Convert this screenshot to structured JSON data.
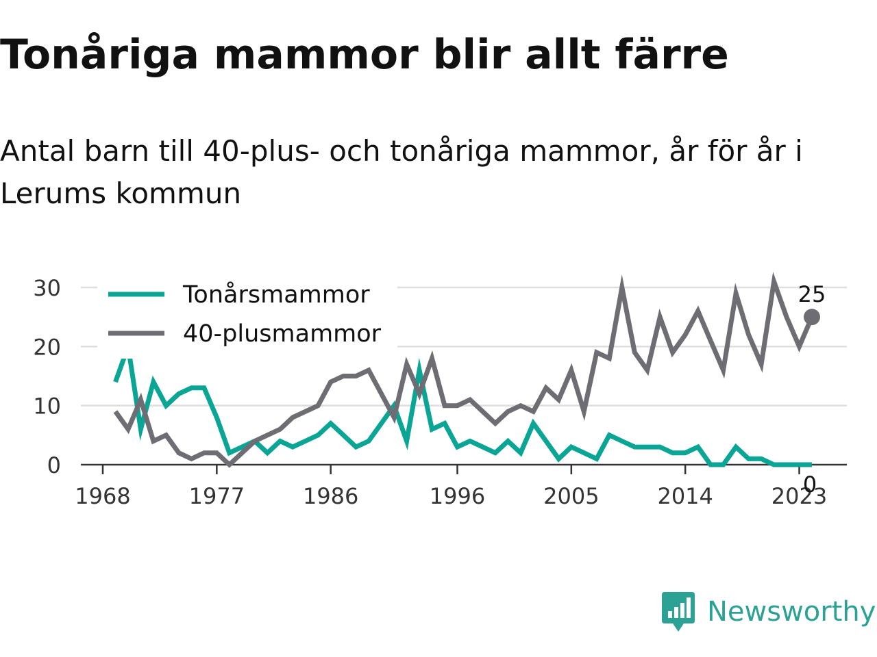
{
  "title": "Tonåriga mammor blir allt färre",
  "subtitle": "Antal barn till 40-plus- och tonåriga mammor, år för år i Lerums kommun",
  "brand": {
    "name": "Newsworthy",
    "icon": "bar-chart-speech-bubble-icon",
    "color": "#2ba293"
  },
  "chart_data": {
    "type": "line",
    "title": "Tonåriga mammor blir allt färre",
    "subtitle": "Antal barn till 40-plus- och tonåriga mammor, år för år i Lerums kommun",
    "xlabel": "",
    "ylabel": "",
    "xlim": [
      1968,
      2024
    ],
    "ylim": [
      0,
      30
    ],
    "x_ticks": [
      1968,
      1977,
      1986,
      1996,
      2005,
      2014,
      2023
    ],
    "y_ticks": [
      0,
      10,
      20,
      30
    ],
    "grid": "horizontal",
    "legend": "top-left",
    "x": [
      1969,
      1970,
      1971,
      1972,
      1973,
      1974,
      1975,
      1976,
      1977,
      1978,
      1979,
      1980,
      1981,
      1982,
      1983,
      1984,
      1985,
      1986,
      1987,
      1988,
      1989,
      1990,
      1991,
      1992,
      1993,
      1994,
      1995,
      1996,
      1997,
      1998,
      1999,
      2000,
      2001,
      2002,
      2003,
      2004,
      2005,
      2006,
      2007,
      2008,
      2009,
      2010,
      2011,
      2012,
      2013,
      2014,
      2015,
      2016,
      2017,
      2018,
      2019,
      2020,
      2021,
      2022,
      2023,
      2024
    ],
    "series": [
      {
        "name": "Tonårsmammor",
        "color": "#0aa594",
        "end_label": "0",
        "values": [
          14,
          20,
          6,
          14,
          10,
          12,
          13,
          13,
          8,
          2,
          3,
          4,
          2,
          4,
          3,
          4,
          5,
          7,
          5,
          3,
          4,
          7,
          10,
          4,
          16,
          6,
          7,
          3,
          4,
          3,
          2,
          4,
          2,
          7,
          4,
          1,
          3,
          2,
          1,
          5,
          4,
          3,
          3,
          3,
          2,
          2,
          3,
          0,
          0,
          3,
          1,
          1,
          0,
          0,
          0,
          0
        ]
      },
      {
        "name": "40-plusmammor",
        "color": "#6e6d74",
        "end_label": "25",
        "values": [
          9,
          6,
          11,
          4,
          5,
          2,
          1,
          2,
          2,
          0,
          2,
          4,
          5,
          6,
          8,
          9,
          10,
          14,
          15,
          15,
          16,
          12,
          8,
          17,
          12,
          18,
          10,
          10,
          11,
          9,
          7,
          9,
          10,
          9,
          13,
          11,
          16,
          9,
          19,
          18,
          30,
          19,
          16,
          25,
          19,
          22,
          26,
          21,
          16,
          29,
          22,
          17,
          31,
          25,
          20,
          25
        ]
      }
    ]
  }
}
